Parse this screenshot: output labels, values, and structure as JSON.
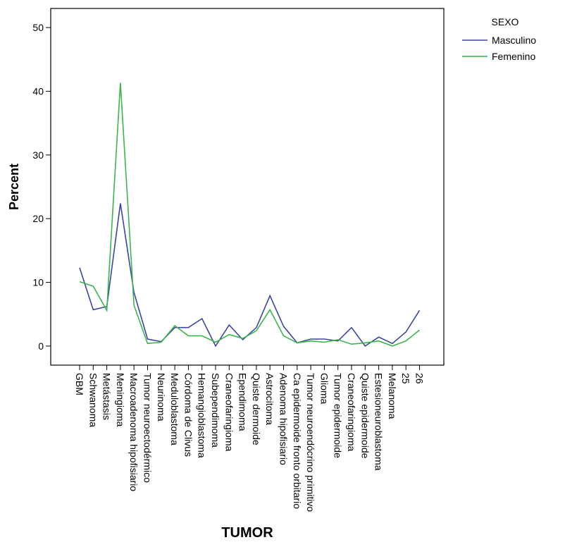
{
  "chart_data": {
    "type": "line",
    "title": "",
    "xlabel": "TUMOR",
    "ylabel": "Percent",
    "ylim": [
      -3,
      53
    ],
    "yticks": [
      0,
      10,
      20,
      30,
      40,
      50
    ],
    "grid": false,
    "legend": {
      "title": "SEXO",
      "placement": "right"
    },
    "categories": [
      "GBM",
      "Schwanoma",
      "Metástasis",
      "Meningioma",
      "Macroadenoma hipofisiario",
      "Tumor neuroectodérmico",
      "Neurinoma",
      "Meduloblastoma",
      "Córdoma de Clivus",
      "Hemangioblastoma",
      "Subependimoma",
      "Craneofaringioma",
      "Ependimoma",
      "Quiste dermoide",
      "Astrocitoma",
      "Adenoma hipofisiario",
      "Ca epidermoide fronto orbitario",
      "Tumor neuroendócrino primitivo",
      "Glioma",
      "Tumor epidermoide",
      "Craneofaringioma",
      "Quiste epidermoide",
      "Estesioneuroblastoma",
      "Melanoma",
      "25",
      "26"
    ],
    "series": [
      {
        "name": "Masculino",
        "color": "#3b46a0",
        "values": [
          12.3,
          5.7,
          6.2,
          22.4,
          8.4,
          1.1,
          0.7,
          2.9,
          2.9,
          4.3,
          0.0,
          3.3,
          1.0,
          2.9,
          7.9,
          3.1,
          0.5,
          1.1,
          1.1,
          0.8,
          2.9,
          0.0,
          1.4,
          0.4,
          2.2,
          5.6
        ]
      },
      {
        "name": "Femenino",
        "color": "#39b54a",
        "values": [
          10.1,
          9.4,
          5.6,
          41.3,
          6.4,
          0.4,
          0.6,
          3.2,
          1.6,
          1.6,
          0.6,
          1.8,
          1.2,
          2.4,
          5.7,
          1.6,
          0.5,
          0.8,
          0.6,
          1.0,
          0.3,
          0.5,
          0.8,
          0.0,
          0.8,
          2.5
        ]
      }
    ]
  }
}
